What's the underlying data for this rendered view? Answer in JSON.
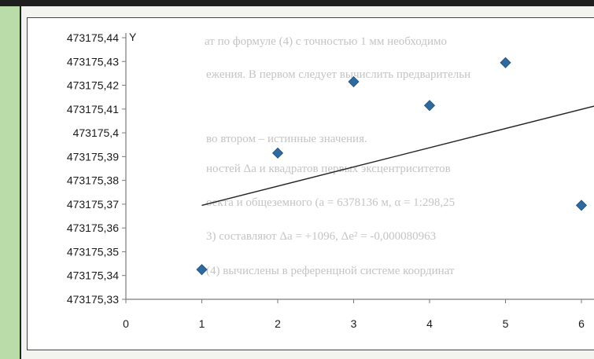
{
  "chart_data": {
    "type": "scatter",
    "ylabel": "Y",
    "xlabel": "",
    "x_ticks": [
      "0",
      "1",
      "2",
      "3",
      "4",
      "5",
      "6"
    ],
    "y_ticks": [
      "473175,44",
      "473175,43",
      "473175,42",
      "473175,41",
      "473175,4",
      "473175,39",
      "473175,38",
      "473175,37",
      "473175,36",
      "473175,35",
      "473175,34",
      "473175,33"
    ],
    "xlim": [
      0,
      6.2
    ],
    "ylim": [
      473175.33,
      473175.44
    ],
    "series": [
      {
        "x": [
          1,
          2,
          3,
          4,
          5,
          6
        ],
        "y": [
          473175.3425,
          473175.3915,
          473175.4215,
          473175.4115,
          473175.4295,
          473175.3695
        ],
        "color": "#2e6a9e"
      }
    ],
    "trendline": {
      "x": [
        1,
        6.2
      ],
      "y": [
        473175.3695,
        473175.4115
      ]
    },
    "grid": false
  },
  "background_text": [
    "ат по формуле (4) с точностью 1 мм необходимо",
    "ежения. В первом следует вычислить предварительн",
    "во втором – истинные значения.",
    "ностей Δa и квадратов первых эксцентриситетов",
    "оекта и общеземного (a = 6378136 м, α = 1:298,25",
    "3) составляют Δa = +1096, Δe² = -0,000080963",
    "(4) вычислены в референцной системе координат"
  ]
}
